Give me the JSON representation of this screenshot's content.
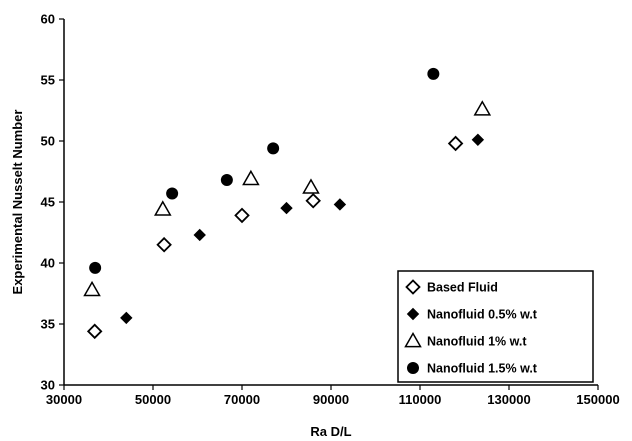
{
  "chart_data": {
    "type": "scatter",
    "xlabel": "Ra D/L",
    "ylabel": "Experimental Nusselt Number",
    "xlim": [
      30000,
      150000
    ],
    "ylim": [
      30,
      60
    ],
    "x_ticks": [
      30000,
      50000,
      70000,
      90000,
      110000,
      130000,
      150000
    ],
    "y_ticks": [
      30,
      35,
      40,
      45,
      50,
      55,
      60
    ],
    "x_tick_labels": [
      "30000",
      "50000",
      "70000",
      "90000",
      "110000",
      "130000",
      "150000"
    ],
    "y_tick_labels": [
      "30",
      "35",
      "40",
      "45",
      "50",
      "55",
      "60"
    ],
    "grid": false,
    "legend_position": "bottom-right",
    "series": [
      {
        "name": "Based Fluid",
        "marker": "diamond-open",
        "color": "#000000",
        "points": [
          {
            "x": 36900,
            "y": 34.4
          },
          {
            "x": 52500,
            "y": 41.5
          },
          {
            "x": 70000,
            "y": 43.9
          },
          {
            "x": 86000,
            "y": 45.1
          },
          {
            "x": 118000,
            "y": 49.8
          }
        ]
      },
      {
        "name": "Nanofluid 0.5% w.t",
        "marker": "diamond-filled",
        "color": "#000000",
        "points": [
          {
            "x": 44000,
            "y": 35.5
          },
          {
            "x": 60500,
            "y": 42.3
          },
          {
            "x": 80000,
            "y": 44.5
          },
          {
            "x": 92000,
            "y": 44.8
          },
          {
            "x": 123000,
            "y": 50.1
          }
        ]
      },
      {
        "name": "Nanofluid 1% w.t",
        "marker": "triangle-open",
        "color": "#000000",
        "points": [
          {
            "x": 36300,
            "y": 37.8
          },
          {
            "x": 52200,
            "y": 44.4
          },
          {
            "x": 72000,
            "y": 46.9
          },
          {
            "x": 85500,
            "y": 46.2
          },
          {
            "x": 124000,
            "y": 52.6
          }
        ]
      },
      {
        "name": "Nanofluid 1.5% w.t",
        "marker": "circle-filled",
        "color": "#000000",
        "points": [
          {
            "x": 37000,
            "y": 39.6
          },
          {
            "x": 54300,
            "y": 45.7
          },
          {
            "x": 66600,
            "y": 46.8
          },
          {
            "x": 77000,
            "y": 49.4
          },
          {
            "x": 113000,
            "y": 55.5
          }
        ]
      }
    ]
  }
}
